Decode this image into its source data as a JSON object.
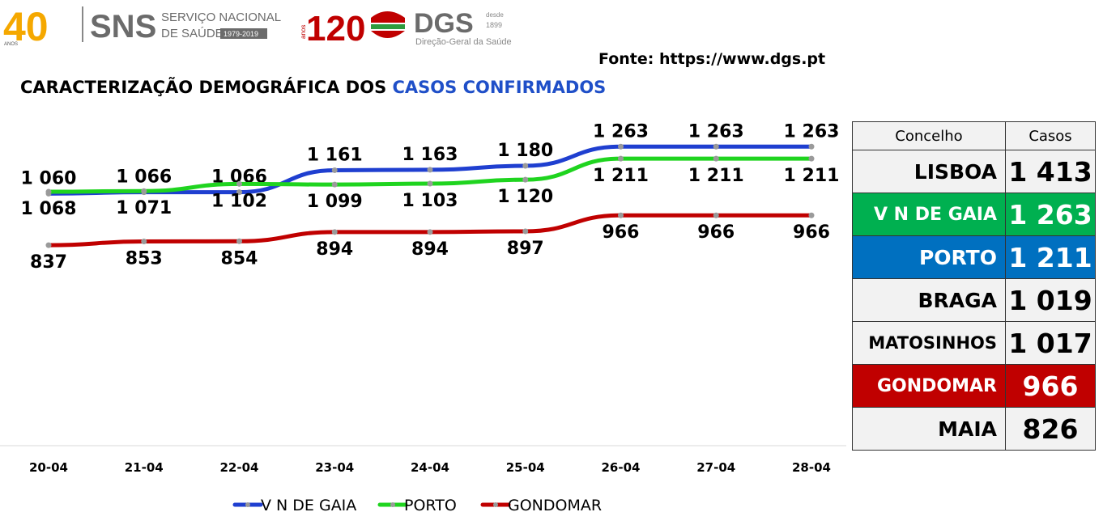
{
  "logos": {
    "sns_anniversary": "40",
    "sns_anniversary_small": "ANOS",
    "sns_name": "SNS",
    "sns_line1": "SERVIÇO NACIONAL",
    "sns_line2": "DE SAÚDE",
    "sns_years": "1979-2019",
    "dgs_anniversary": "120",
    "dgs_anniversary_small": "anos",
    "dgs_name": "DGS",
    "dgs_since": "desde",
    "dgs_since_year": "1899",
    "dgs_subtitle": "Direção-Geral da Saúde"
  },
  "source": "Fonte: https://www.dgs.pt",
  "title": {
    "prefix": "CARACTERIZAÇÃO DEMOGRÁFICA DOS ",
    "highlight": "CASOS CONFIRMADOS"
  },
  "chart_data": {
    "type": "line",
    "categories": [
      "20-04",
      "21-04",
      "22-04",
      "23-04",
      "24-04",
      "25-04",
      "26-04",
      "27-04",
      "28-04"
    ],
    "series": [
      {
        "name": "V N DE GAIA",
        "color": "#1f3fd0",
        "values": [
          1060,
          1066,
          1066,
          1161,
          1163,
          1180,
          1263,
          1263,
          1263
        ],
        "labels": [
          "1 060",
          "1 066",
          "1 066",
          "1 161",
          "1 163",
          "1 180",
          "1 263",
          "1 263",
          "1 263"
        ]
      },
      {
        "name": "PORTO",
        "color": "#1fd41f",
        "values": [
          1068,
          1071,
          1102,
          1099,
          1103,
          1120,
          1211,
          1211,
          1211
        ],
        "labels": [
          "1 068",
          "1 071",
          "1 102",
          "1 099",
          "1 103",
          "1 120",
          "1 211",
          "1 211",
          "1 211"
        ]
      },
      {
        "name": "GONDOMAR",
        "color": "#c00000",
        "values": [
          837,
          853,
          854,
          894,
          894,
          897,
          966,
          966,
          966
        ],
        "labels": [
          "837",
          "853",
          "854",
          "894",
          "894",
          "897",
          "966",
          "966",
          "966"
        ]
      }
    ],
    "ylim": [
      0,
      1300
    ],
    "legend": "bottom",
    "grid": false
  },
  "table": {
    "headers": [
      "Concelho",
      "Casos"
    ],
    "rows": [
      {
        "name": "LISBOA",
        "value": "1 413"
      },
      {
        "name": "V N DE GAIA",
        "value": "1 263",
        "color": "#00b050"
      },
      {
        "name": "PORTO",
        "value": "1 211",
        "color": "#0070c0"
      },
      {
        "name": "BRAGA",
        "value": "1 019"
      },
      {
        "name": "MATOSINHOS",
        "value": "1 017"
      },
      {
        "name": "GONDOMAR",
        "value": "966",
        "color": "#c00000"
      },
      {
        "name": "MAIA",
        "value": "826"
      }
    ]
  }
}
